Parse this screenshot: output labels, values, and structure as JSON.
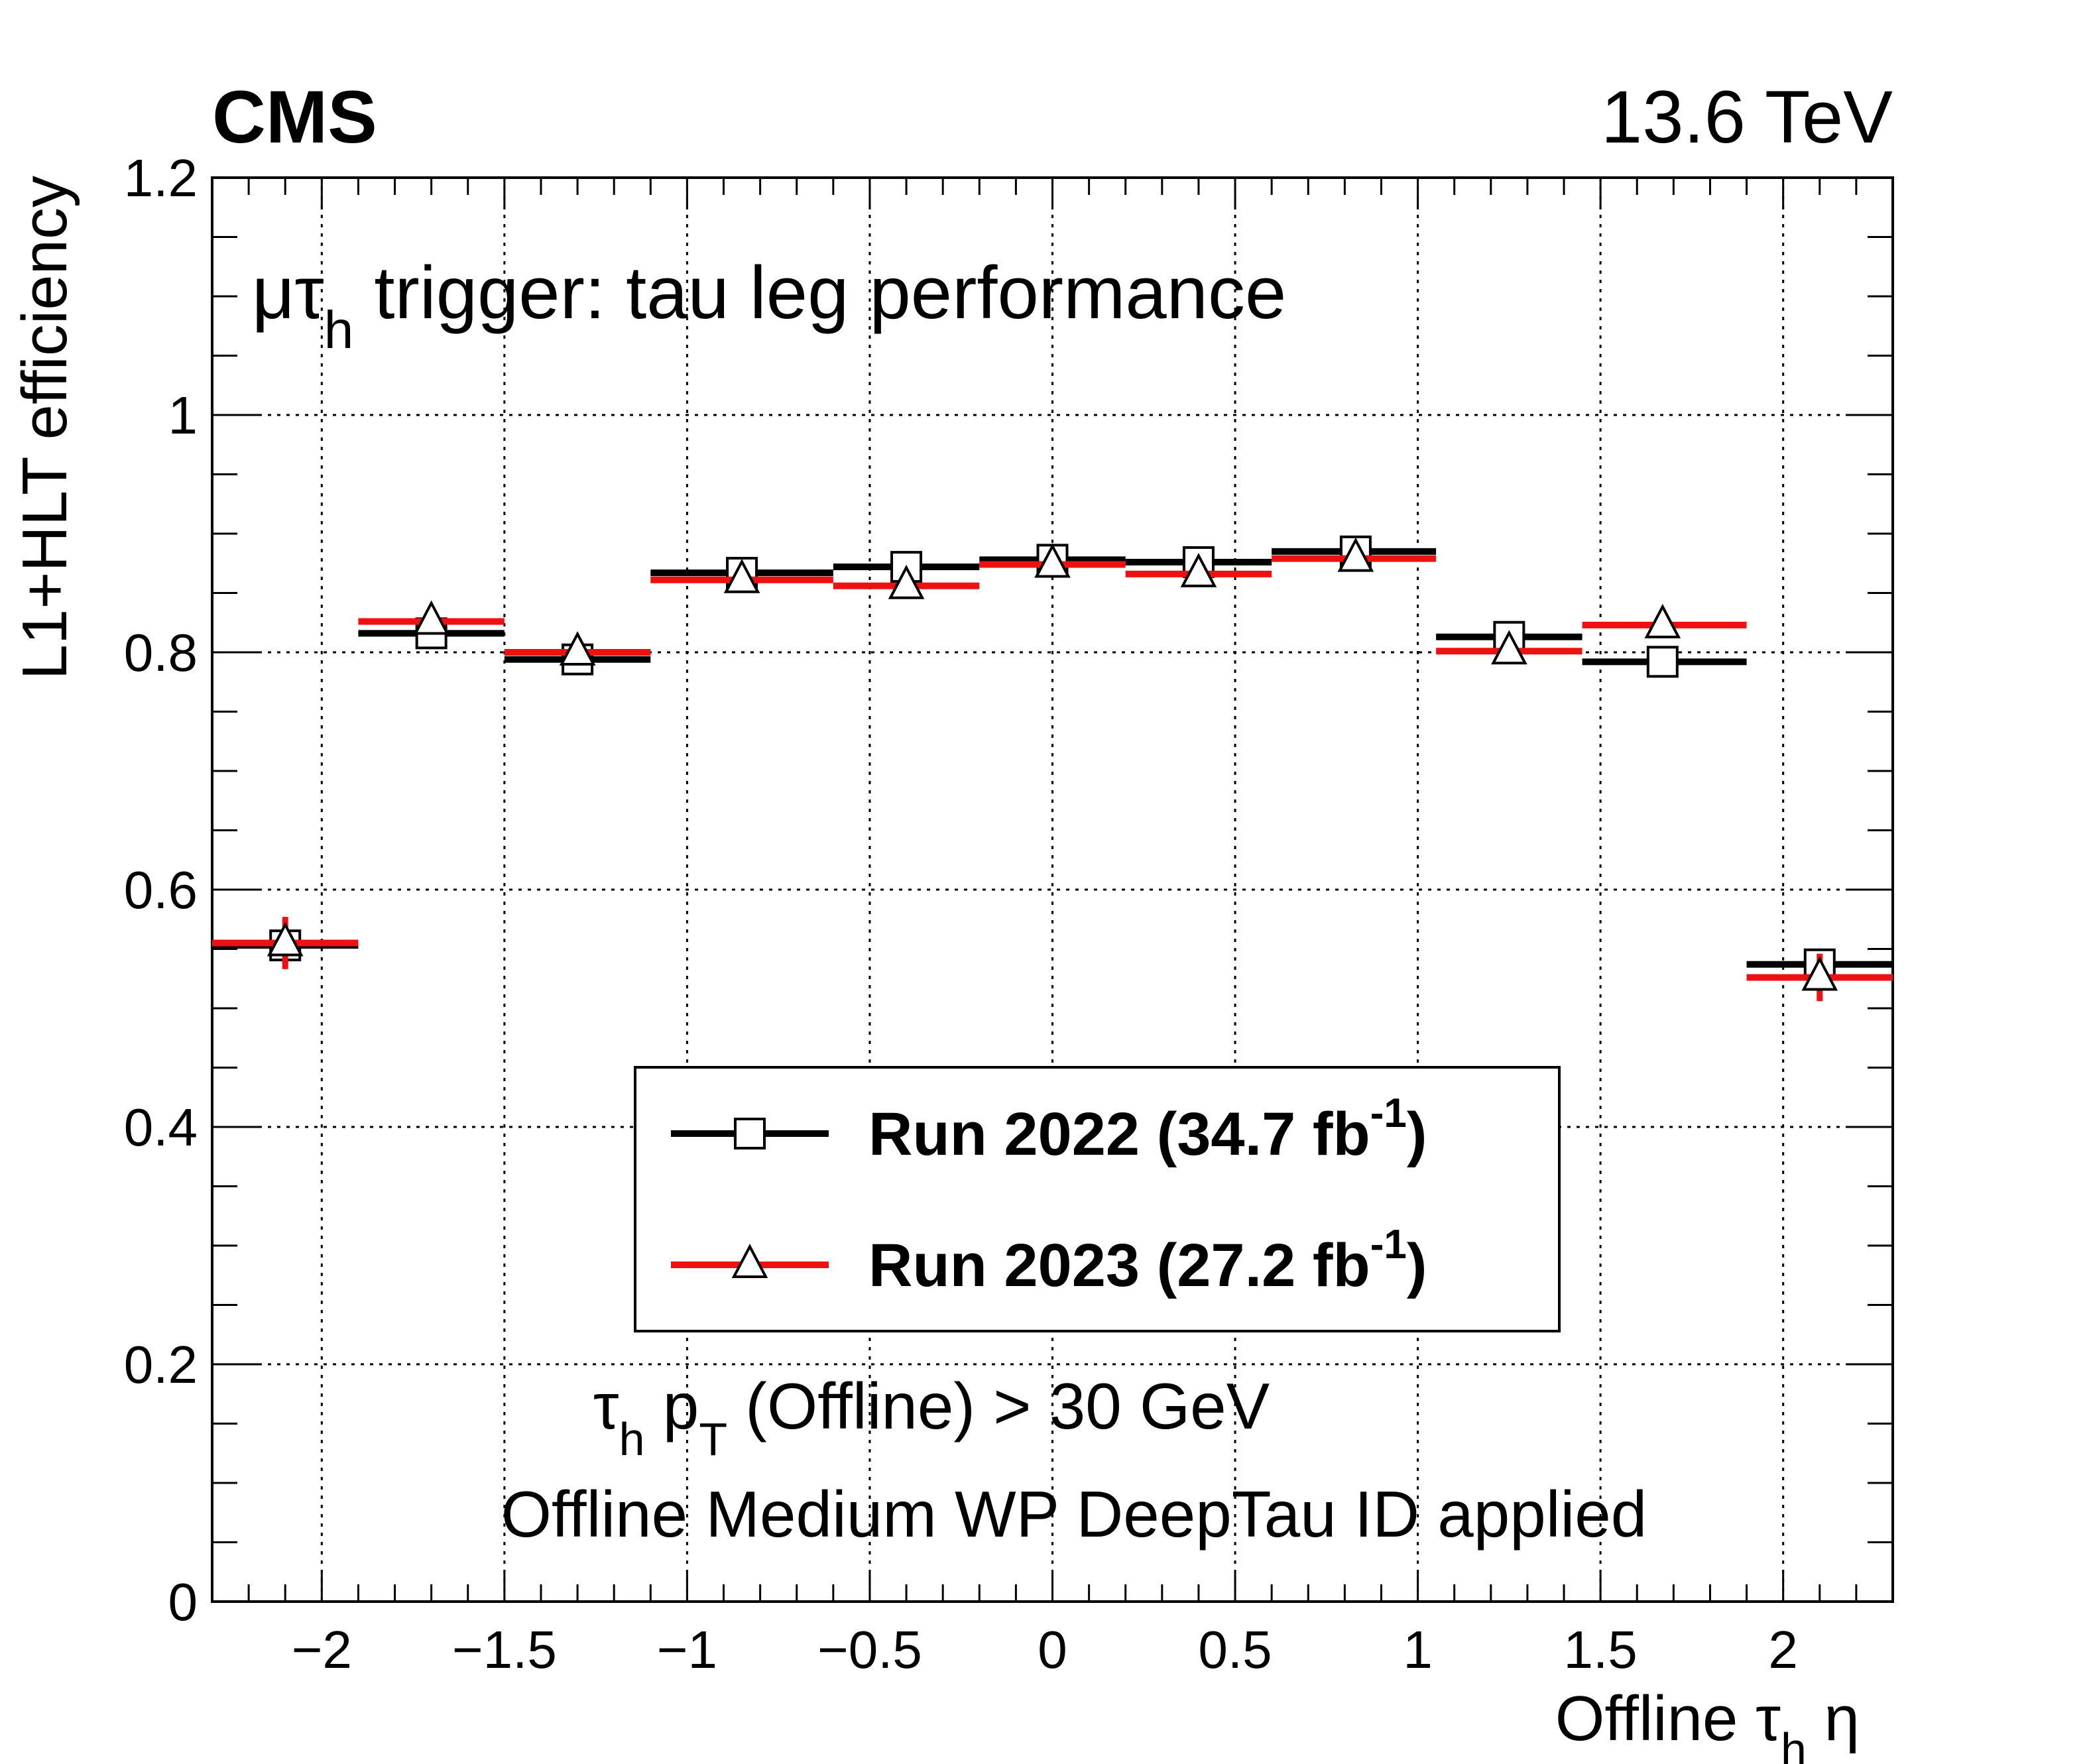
{
  "header": {
    "experiment": "CMS",
    "energy": "13.6 TeV"
  },
  "annotation": {
    "title_prefix": "μτ",
    "title_sub": "h",
    "title_suffix": " trigger: tau leg performance",
    "cut_prefix": "τ",
    "cut_sub1": "h",
    "cut_mid": " p",
    "cut_sub2": "T",
    "cut_suffix": " (Offline) > 30 GeV",
    "id_line": "Offline Medium WP DeepTau ID applied"
  },
  "axes": {
    "xlabel_prefix": "Offline τ",
    "xlabel_sub": "h",
    "xlabel_suffix": " η",
    "ylabel": "L1+HLT efficiency"
  },
  "chart_data": {
    "type": "scatter",
    "xlim": [
      -2.3,
      2.3
    ],
    "ylim": [
      0,
      1.2
    ],
    "x_ticks": [
      -2,
      -1.5,
      -1,
      -0.5,
      0,
      0.5,
      1,
      1.5,
      2
    ],
    "x_tick_labels": [
      "−2",
      "−1.5",
      "−1",
      "−0.5",
      "0",
      "0.5",
      "1",
      "1.5",
      "2"
    ],
    "y_ticks": [
      0,
      0.2,
      0.4,
      0.6,
      0.8,
      1,
      1.2
    ],
    "y_tick_labels": [
      "0",
      "0.2",
      "0.4",
      "0.6",
      "0.8",
      "1",
      "1.2"
    ],
    "grid": true,
    "legend_position": "lower-center",
    "bins": [
      [
        -2.3,
        -1.9
      ],
      [
        -1.9,
        -1.5
      ],
      [
        -1.5,
        -1.1
      ],
      [
        -1.1,
        -0.6
      ],
      [
        -0.6,
        -0.2
      ],
      [
        -0.2,
        0.2
      ],
      [
        0.2,
        0.6
      ],
      [
        0.6,
        1.05
      ],
      [
        1.05,
        1.45
      ],
      [
        1.45,
        1.9
      ],
      [
        1.9,
        2.3
      ]
    ],
    "series": [
      {
        "name": "Run 2022 (34.7 fb",
        "name_sup": "-1",
        "name_end": ")",
        "color": "#000000",
        "marker": "open-square",
        "x": [
          -2.1,
          -1.7,
          -1.3,
          -0.85,
          -0.4,
          0.0,
          0.4,
          0.83,
          1.25,
          1.67,
          2.1
        ],
        "values": [
          0.553,
          0.816,
          0.794,
          0.867,
          0.872,
          0.878,
          0.876,
          0.885,
          0.813,
          0.792,
          0.537
        ],
        "errors": [
          0.015,
          0.004,
          0.004,
          0.003,
          0.003,
          0.003,
          0.003,
          0.004,
          0.004,
          0.005,
          0.012
        ]
      },
      {
        "name": "Run 2023 (27.2 fb",
        "name_sup": "-1",
        "name_end": ")",
        "color": "#ee1111",
        "marker": "open-triangle",
        "x": [
          -2.1,
          -1.7,
          -1.3,
          -0.85,
          -0.4,
          0.0,
          0.4,
          0.83,
          1.25,
          1.67,
          2.1
        ],
        "values": [
          0.555,
          0.826,
          0.8,
          0.861,
          0.856,
          0.874,
          0.866,
          0.879,
          0.801,
          0.823,
          0.526
        ],
        "errors": [
          0.022,
          0.004,
          0.004,
          0.003,
          0.003,
          0.003,
          0.003,
          0.004,
          0.004,
          0.005,
          0.02
        ]
      }
    ]
  }
}
